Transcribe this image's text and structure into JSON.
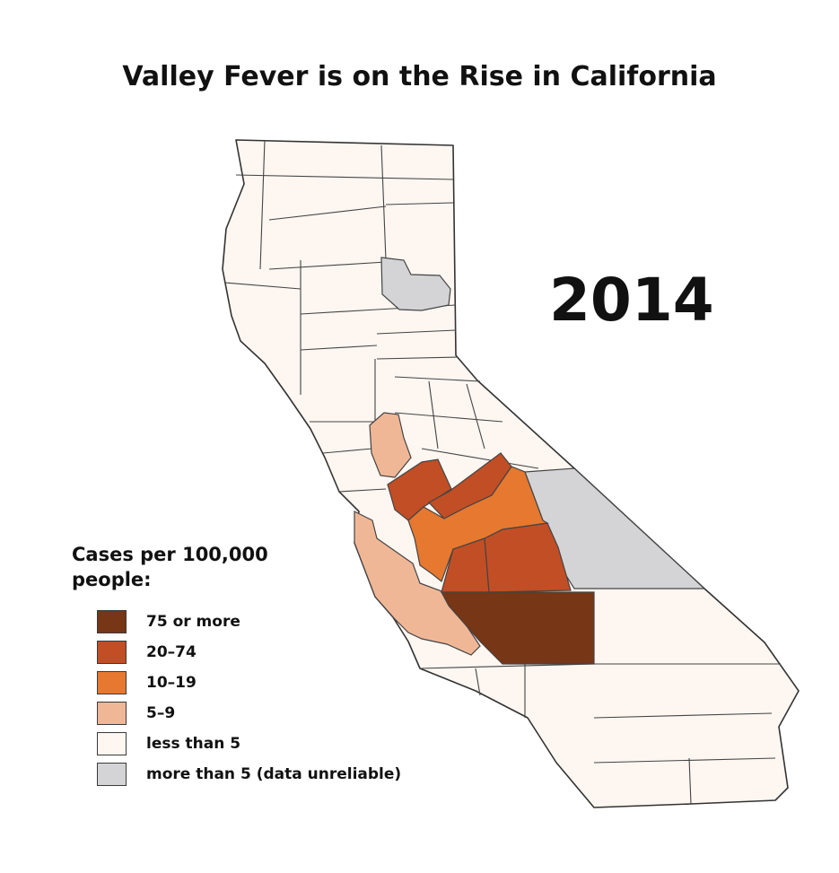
{
  "title": "Valley Fever is on the Rise in California",
  "year": "2014",
  "legend": {
    "title_line1": "Cases per 100,000",
    "title_line2": "people:",
    "items": [
      {
        "label": "75 or more",
        "color": "#773615"
      },
      {
        "label": "20–74",
        "color": "#c24e25"
      },
      {
        "label": "10–19",
        "color": "#e6782f"
      },
      {
        "label": "5–9",
        "color": "#f0b797"
      },
      {
        "label": "less than 5",
        "color": "#fdf6f1"
      },
      {
        "label": "more than 5 (data unreliable)",
        "color": "#d4d4d6"
      }
    ]
  }
}
